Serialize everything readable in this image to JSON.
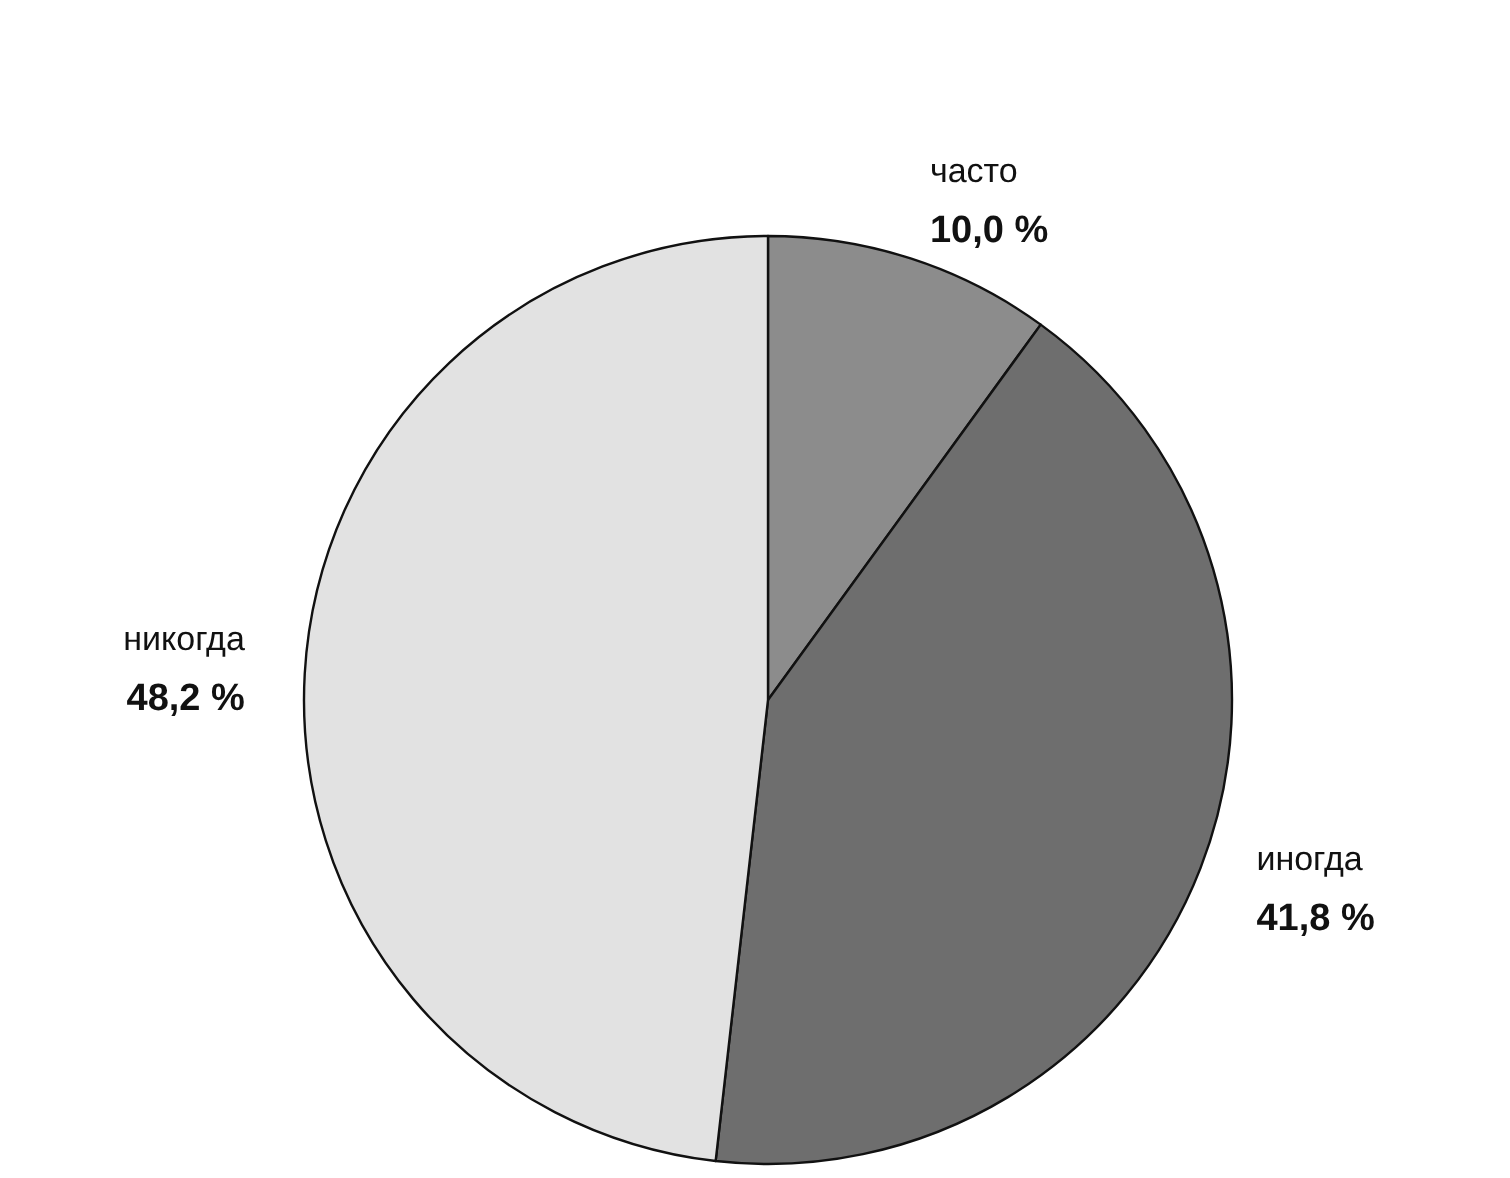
{
  "chart_data": {
    "type": "pie",
    "categories": [
      "часто",
      "иногда",
      "никогда"
    ],
    "values": [
      10.0,
      41.8,
      48.2
    ],
    "value_labels": [
      "10,0 %",
      "41,8 %",
      "48,2 %"
    ],
    "colors": [
      "#8c8c8c",
      "#6e6e6e",
      "#e2e2e2"
    ],
    "legend": false
  }
}
